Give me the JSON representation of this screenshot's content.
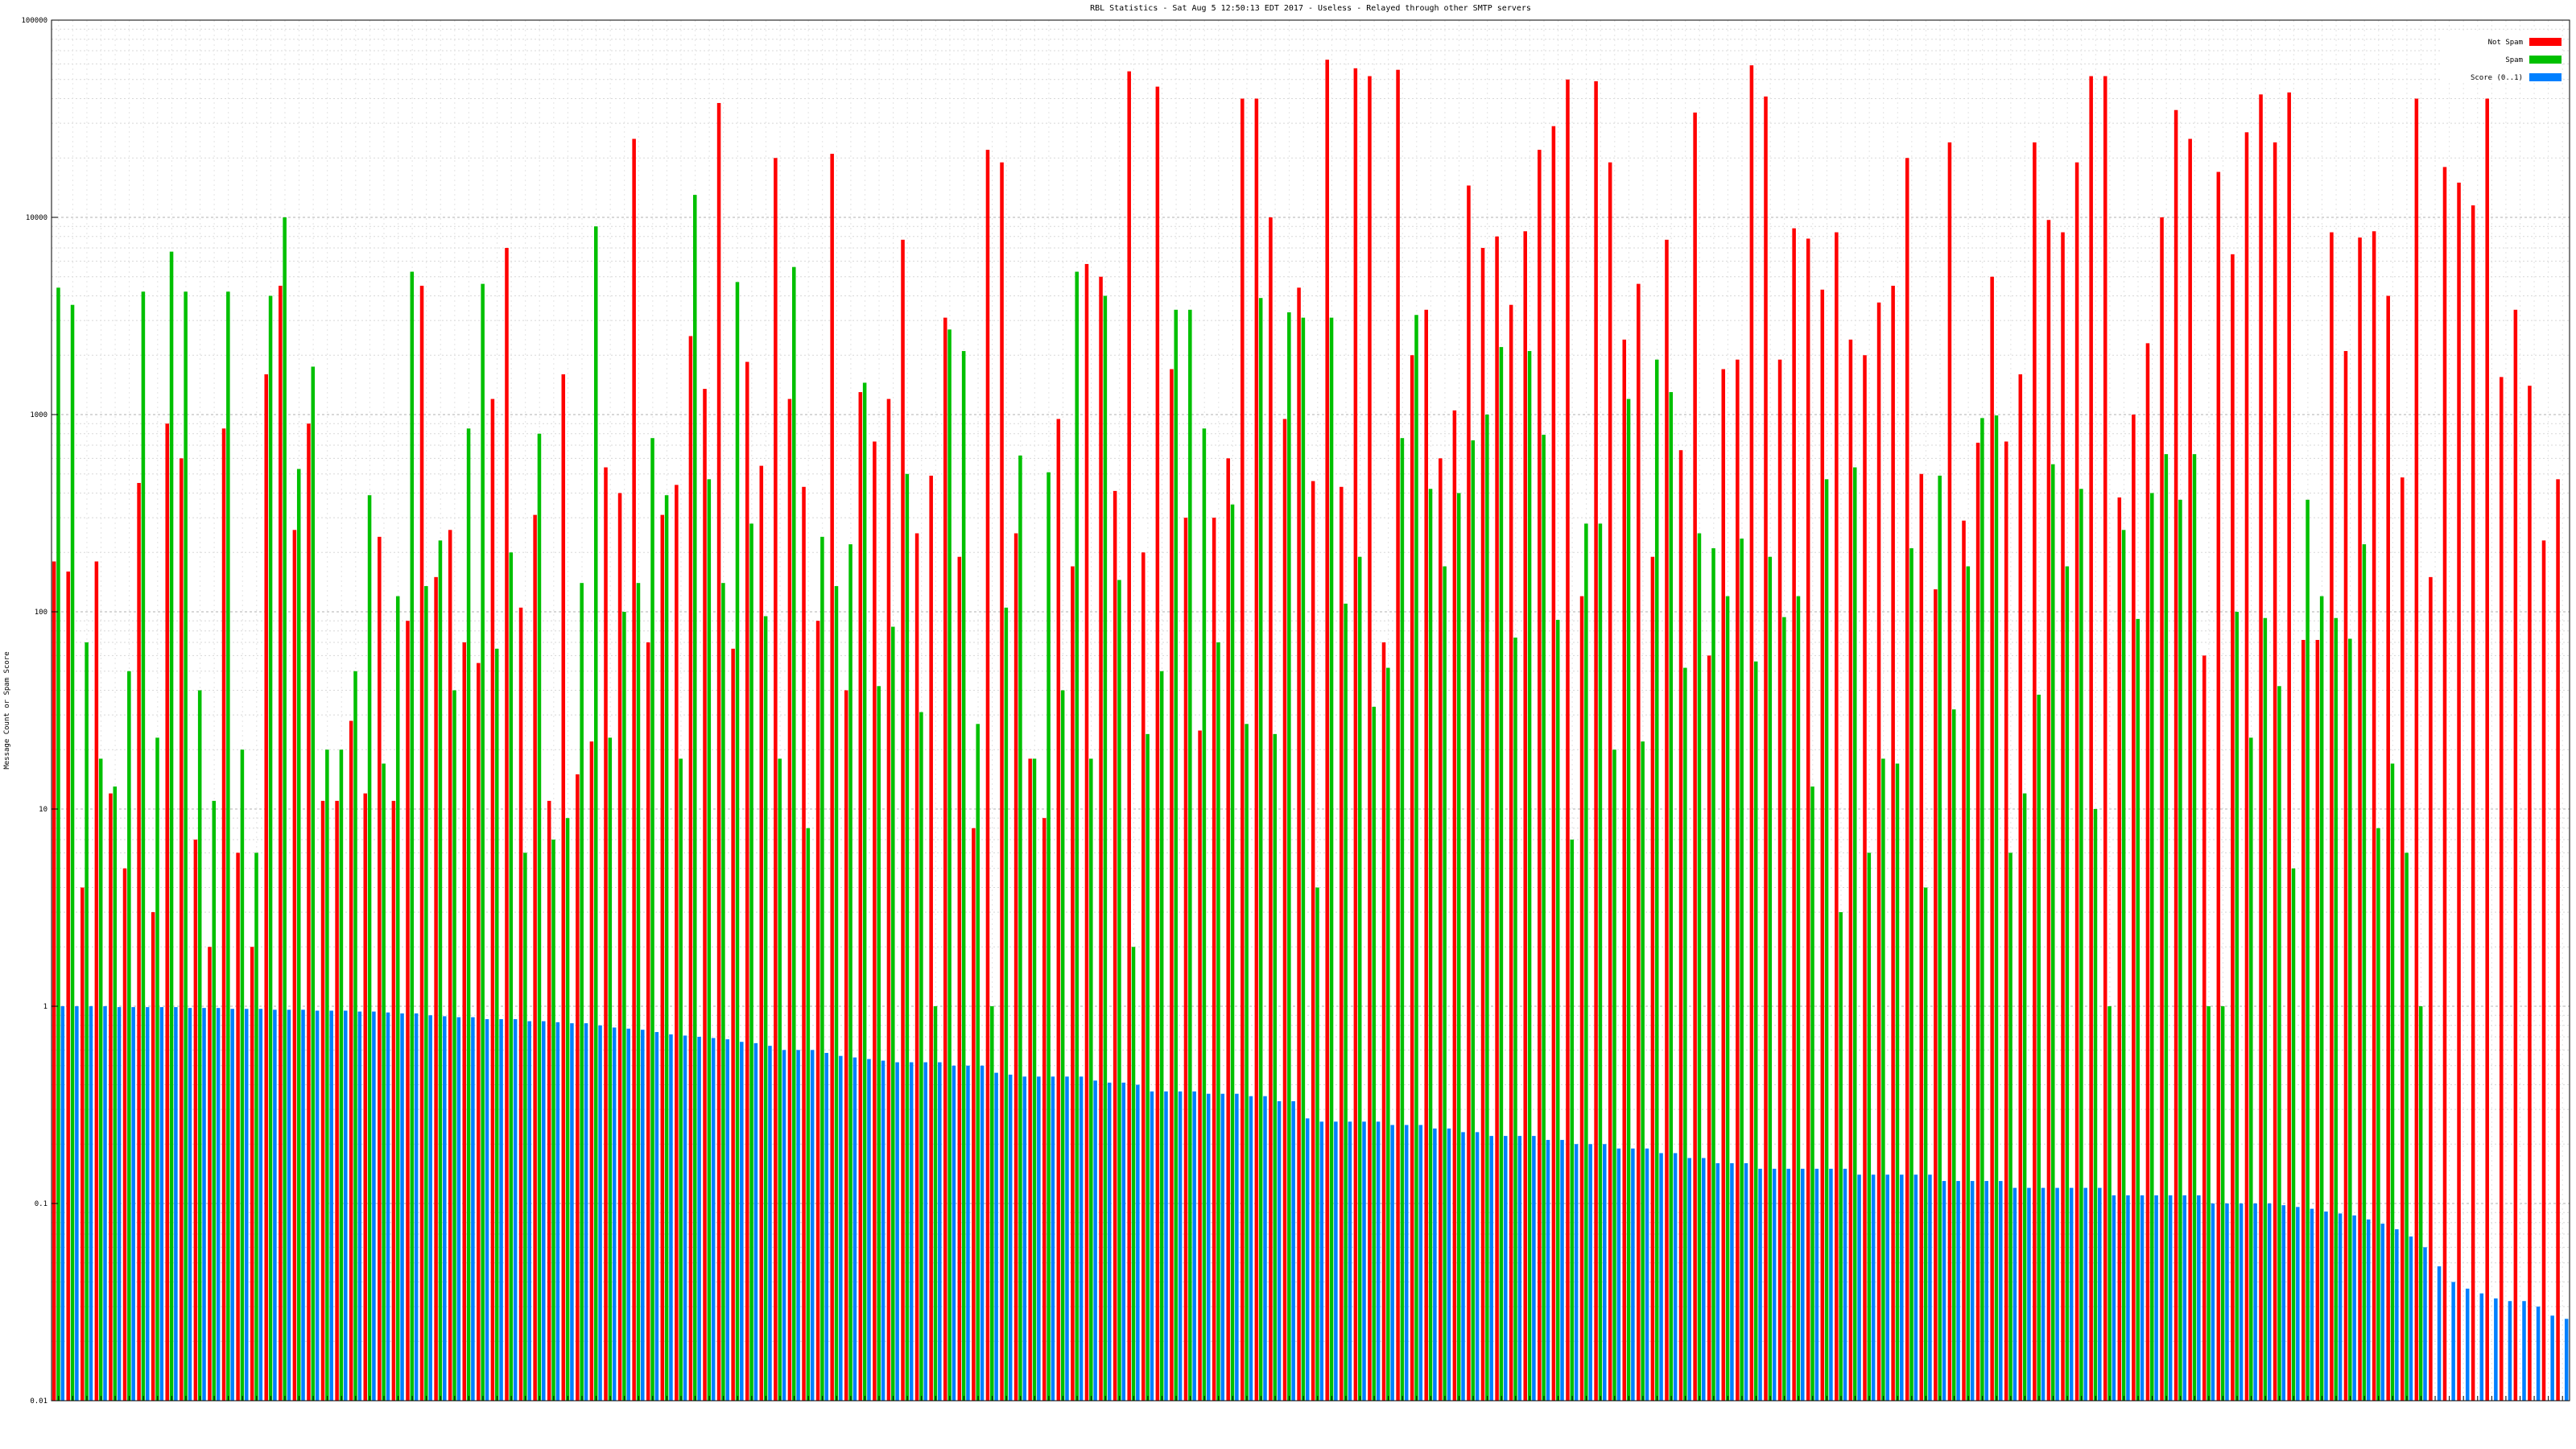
{
  "chart_data": {
    "type": "bar",
    "title": "RBL Statistics - Sat Aug  5 12:50:13 EDT 2017 - Useless - Relayed through other SMTP servers",
    "ylabel": "Message Count or Spam Score",
    "yscale": "log",
    "ylim": [
      0.01,
      100000
    ],
    "y_ticks": [
      "0.01",
      "0.1",
      "1",
      "10",
      "100",
      "1000",
      "10000",
      "100000"
    ],
    "grid": true,
    "legend_position": "top-right",
    "colors": {
      "not_spam": "#ff0000",
      "spam": "#00c000",
      "score": "#0080ff"
    },
    "series": [
      {
        "name": "Not Spam",
        "values": [
          180,
          160,
          4,
          180,
          12,
          5,
          450,
          3,
          900,
          600,
          7,
          2,
          850,
          6,
          2,
          1600,
          4500,
          260,
          900,
          11,
          11,
          28,
          12,
          240,
          11,
          90,
          4500,
          150,
          260,
          70,
          55,
          1200,
          7000,
          105,
          310,
          11,
          1600,
          15,
          22,
          540,
          400,
          25000,
          70,
          310,
          440,
          2500,
          1350,
          38000,
          65,
          1850,
          550,
          20000,
          1200,
          430,
          90,
          21000,
          40,
          1300,
          730,
          1200,
          7700,
          250,
          490,
          3100,
          190,
          8,
          22000,
          19000,
          250,
          18,
          9,
          950,
          170,
          5800,
          5000,
          410,
          55000,
          200,
          46000,
          1700,
          300,
          25,
          300,
          600,
          40000,
          40000,
          10000,
          950,
          4400,
          460,
          63000,
          430,
          57000,
          52000,
          70,
          56000,
          2000,
          3400,
          600,
          1050,
          14500,
          7000,
          8000,
          3600,
          8500,
          22000,
          29000,
          50000,
          120,
          49000,
          19000,
          2400,
          4600,
          190,
          7700,
          660,
          34000,
          60,
          1700,
          1900,
          59000,
          41000,
          1900,
          8800,
          7800,
          4300,
          8400,
          2400,
          2000,
          3700,
          4500,
          20000,
          500,
          130,
          24000,
          290,
          720,
          5000,
          730,
          1600,
          24000,
          9700,
          8400,
          19000,
          52000,
          52000,
          380,
          1000,
          2300,
          10000,
          35000,
          25000,
          60,
          17000,
          6500,
          27000,
          42000,
          24000,
          43000,
          72,
          72,
          8400,
          2100,
          7900,
          8500,
          4000,
          480,
          40000,
          150,
          18000,
          15000,
          11500,
          40000,
          1550,
          3400,
          1400,
          230,
          470
        ]
      },
      {
        "name": "Spam",
        "values": [
          4400,
          3600,
          70,
          18,
          13,
          50,
          4200,
          23,
          6700,
          4200,
          40,
          11,
          4200,
          20,
          6,
          4000,
          10000,
          530,
          1750,
          20,
          20,
          50,
          390,
          17,
          120,
          5300,
          135,
          230,
          40,
          850,
          4600,
          65,
          200,
          6,
          800,
          7,
          9,
          140,
          9000,
          23,
          100,
          140,
          760,
          390,
          18,
          13000,
          470,
          140,
          4700,
          280,
          95,
          18,
          5600,
          8,
          240,
          135,
          220,
          1450,
          42,
          84,
          500,
          31,
          1,
          2700,
          2100,
          27,
          1,
          105,
          620,
          18,
          510,
          40,
          5300,
          18,
          4000,
          145,
          2,
          24,
          50,
          3400,
          3400,
          850,
          70,
          350,
          27,
          3900,
          24,
          3300,
          3100,
          4,
          3100,
          110,
          190,
          33,
          52,
          760,
          3200,
          420,
          170,
          400,
          740,
          1000,
          2200,
          74,
          2100,
          790,
          91,
          7,
          280,
          280,
          20,
          1200,
          22,
          1900,
          1300,
          52,
          250,
          210,
          120,
          235,
          56,
          190,
          94,
          120,
          13,
          470,
          3,
          540,
          6,
          18,
          17,
          210,
          4,
          490,
          32,
          170,
          960,
          990,
          6,
          12,
          38,
          560,
          170,
          420,
          10,
          1,
          260,
          92,
          400,
          630,
          370,
          630,
          1,
          1,
          100,
          23,
          93,
          42,
          5,
          370,
          120,
          93,
          73,
          220,
          8,
          17,
          6,
          1
        ]
      },
      {
        "name": "Score (0..1)",
        "values": [
          1,
          1,
          1,
          1,
          0.99,
          0.99,
          0.99,
          0.99,
          0.99,
          0.98,
          0.98,
          0.98,
          0.97,
          0.97,
          0.97,
          0.96,
          0.96,
          0.96,
          0.95,
          0.95,
          0.95,
          0.94,
          0.94,
          0.93,
          0.92,
          0.92,
          0.9,
          0.89,
          0.88,
          0.88,
          0.86,
          0.86,
          0.86,
          0.84,
          0.84,
          0.83,
          0.82,
          0.82,
          0.8,
          0.78,
          0.77,
          0.76,
          0.74,
          0.72,
          0.71,
          0.7,
          0.69,
          0.68,
          0.66,
          0.65,
          0.63,
          0.6,
          0.6,
          0.6,
          0.58,
          0.56,
          0.55,
          0.54,
          0.53,
          0.52,
          0.52,
          0.52,
          0.52,
          0.5,
          0.5,
          0.5,
          0.46,
          0.45,
          0.44,
          0.44,
          0.44,
          0.44,
          0.44,
          0.42,
          0.41,
          0.41,
          0.4,
          0.37,
          0.37,
          0.37,
          0.37,
          0.36,
          0.36,
          0.36,
          0.35,
          0.35,
          0.33,
          0.33,
          0.27,
          0.26,
          0.26,
          0.26,
          0.26,
          0.26,
          0.25,
          0.25,
          0.25,
          0.24,
          0.24,
          0.23,
          0.23,
          0.22,
          0.22,
          0.22,
          0.22,
          0.21,
          0.21,
          0.2,
          0.2,
          0.2,
          0.19,
          0.19,
          0.19,
          0.18,
          0.18,
          0.17,
          0.17,
          0.16,
          0.16,
          0.16,
          0.15,
          0.15,
          0.15,
          0.15,
          0.15,
          0.15,
          0.15,
          0.14,
          0.14,
          0.14,
          0.14,
          0.14,
          0.14,
          0.13,
          0.13,
          0.13,
          0.13,
          0.13,
          0.12,
          0.12,
          0.12,
          0.12,
          0.12,
          0.12,
          0.12,
          0.11,
          0.11,
          0.11,
          0.11,
          0.11,
          0.11,
          0.11,
          0.1,
          0.1,
          0.1,
          0.1,
          0.1,
          0.098,
          0.096,
          0.094,
          0.091,
          0.089,
          0.087,
          0.083,
          0.079,
          0.074,
          0.068,
          0.06,
          0.048,
          0.04,
          0.037,
          0.035,
          0.033,
          0.032,
          0.032,
          0.03,
          0.027,
          0.026
        ]
      }
    ]
  }
}
